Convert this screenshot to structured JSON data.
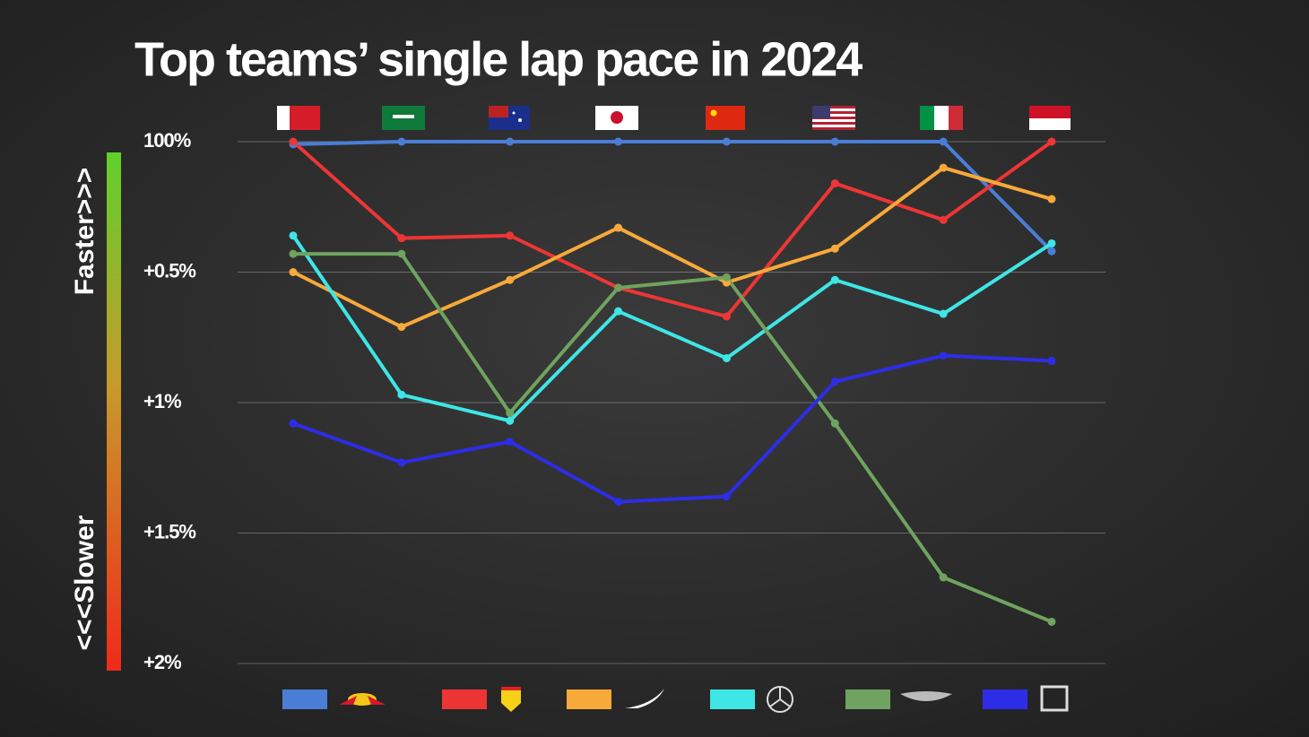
{
  "chart_data": {
    "type": "line",
    "title": "Top teams’ single lap pace in 2024",
    "annotations": {
      "faster": "Faster>>>",
      "slower": "<<<Slower"
    },
    "categories": [
      null,
      null,
      null,
      null,
      null,
      null,
      null,
      null
    ],
    "ylim": [
      2,
      0
    ],
    "yticks": [
      {
        "value": 0,
        "label": "100%"
      },
      {
        "value": 0.5,
        "label": "+0.5%"
      },
      {
        "value": 1,
        "label": "+1%"
      },
      {
        "value": 1.5,
        "label": "+1.5%"
      },
      {
        "value": 2,
        "label": "+2%"
      }
    ],
    "grid": true,
    "series": [
      {
        "color": "#4a7ed6",
        "values": [
          0.01,
          0,
          0,
          0,
          0,
          0,
          0,
          0.42
        ]
      },
      {
        "color": "#ee3535",
        "values": [
          0,
          0.37,
          0.36,
          0.56,
          0.67,
          0.16,
          0.3,
          0
        ]
      },
      {
        "color": "#f7a93a",
        "values": [
          0.5,
          0.71,
          0.53,
          0.33,
          0.54,
          0.41,
          0.1,
          0.22
        ]
      },
      {
        "color": "#3ee6e6",
        "values": [
          0.36,
          0.97,
          1.07,
          0.65,
          0.83,
          0.53,
          0.66,
          0.39
        ]
      },
      {
        "color": "#6fa35f",
        "values": [
          0.43,
          0.43,
          1.04,
          0.56,
          0.52,
          1.08,
          1.67,
          1.84
        ]
      },
      {
        "color": "#2d2de8",
        "values": [
          1.08,
          1.23,
          1.15,
          1.38,
          1.36,
          0.92,
          0.82,
          0.84
        ]
      }
    ]
  }
}
